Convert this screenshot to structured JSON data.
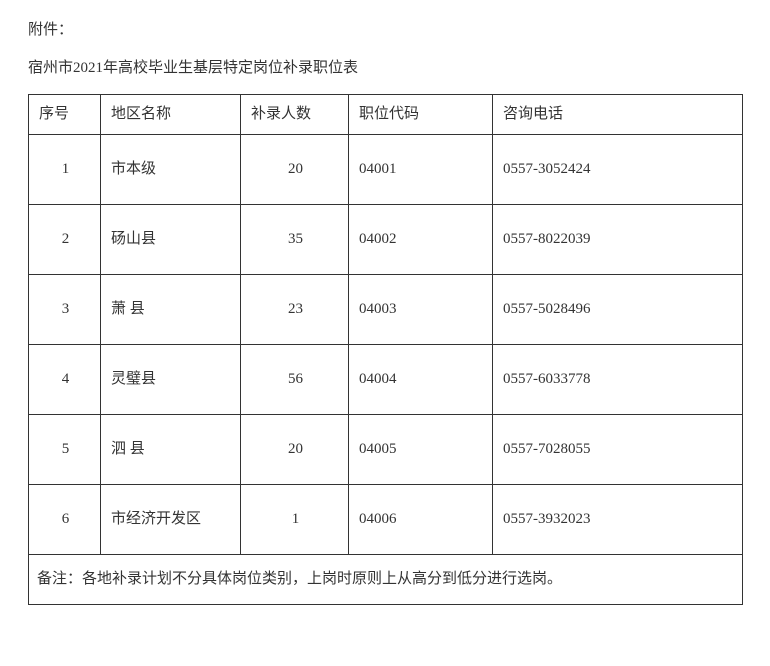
{
  "attachment_label": "附件：",
  "title": "宿州市2021年高校毕业生基层特定岗位补录职位表",
  "headers": {
    "index": "序号",
    "region": "地区名称",
    "count": "补录人数",
    "code": "职位代码",
    "tel": "咨询电话"
  },
  "rows": [
    {
      "index": "1",
      "region": "市本级",
      "count": "20",
      "code": "04001",
      "tel": "0557-3052424"
    },
    {
      "index": "2",
      "region": "砀山县",
      "count": "35",
      "code": "04002",
      "tel": "0557-8022039"
    },
    {
      "index": "3",
      "region": "萧  县",
      "count": "23",
      "code": "04003",
      "tel": "0557-5028496"
    },
    {
      "index": "4",
      "region": "灵璧县",
      "count": "56",
      "code": "04004",
      "tel": "0557-6033778"
    },
    {
      "index": "5",
      "region": "泗  县",
      "count": "20",
      "code": "04005",
      "tel": "0557-7028055"
    },
    {
      "index": "6",
      "region": "市经济开发区",
      "count": "1",
      "code": "04006",
      "tel": "0557-3932023"
    }
  ],
  "note": "备注：各地补录计划不分具体岗位类别，上岗时原则上从高分到低分进行选岗。"
}
